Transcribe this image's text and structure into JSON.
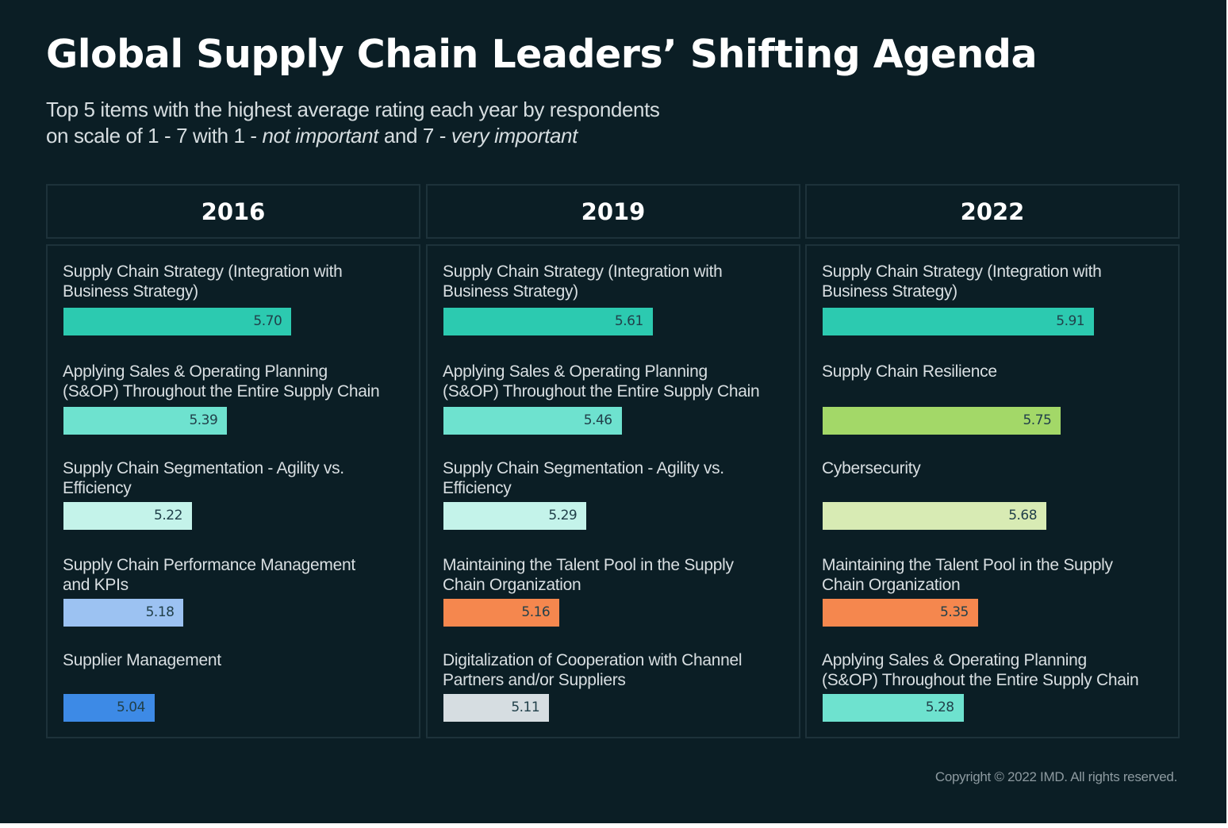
{
  "title": "Global Supply Chain Leaders’ Shifting Agenda",
  "subtitle": {
    "line1": "Top 5 items with the highest average rating each year by respondents",
    "line2_start": "on scale of 1 - 7 with 1 - ",
    "low_label": "not important",
    "line2_mid": " and 7 - ",
    "high_label": "very important"
  },
  "copyright": "Copyright © 2022 IMD. All rights reserved.",
  "colors": {
    "background": "#0b1e25",
    "teal": "#2ccab0",
    "teal_light": "#6ee2cf",
    "teal_pale": "#c4f3ea",
    "blue_light": "#9cc2f2",
    "blue": "#3d8ae6",
    "lime": "#a3d868",
    "lime_pale": "#d8ebb4",
    "orange": "#f5874e",
    "gray": "#d6dde1"
  },
  "chart_data": {
    "type": "bar",
    "orientation": "horizontal",
    "xlim": [
      4.6,
      6.1
    ],
    "panels": [
      {
        "year": "2016",
        "items": [
          {
            "label_lines": [
              "Supply Chain Strategy (Integration with",
              "Business Strategy)"
            ],
            "value": 5.7,
            "display": "5.70",
            "color": "#2ccab0"
          },
          {
            "label_lines": [
              "Applying Sales & Operating Planning",
              "(S&OP) Throughout the Entire Supply Chain"
            ],
            "value": 5.39,
            "display": "5.39",
            "color": "#6ee2cf"
          },
          {
            "label_lines": [
              "Supply Chain Segmentation - Agility vs.",
              "Efficiency"
            ],
            "value": 5.22,
            "display": "5.22",
            "color": "#c4f3ea"
          },
          {
            "label_lines": [
              "Supply Chain Performance Management",
              "and KPIs"
            ],
            "value": 5.18,
            "display": "5.18",
            "color": "#9cc2f2"
          },
          {
            "label_lines": [
              "Supplier Management"
            ],
            "value": 5.04,
            "display": "5.04",
            "color": "#3d8ae6"
          }
        ]
      },
      {
        "year": "2019",
        "items": [
          {
            "label_lines": [
              "Supply Chain Strategy (Integration with",
              "Business Strategy)"
            ],
            "value": 5.61,
            "display": "5.61",
            "color": "#2ccab0"
          },
          {
            "label_lines": [
              "Applying Sales & Operating Planning",
              "(S&OP) Throughout the Entire Supply Chain"
            ],
            "value": 5.46,
            "display": "5.46",
            "color": "#6ee2cf"
          },
          {
            "label_lines": [
              "Supply Chain Segmentation - Agility vs.",
              "Efficiency"
            ],
            "value": 5.29,
            "display": "5.29",
            "color": "#c4f3ea"
          },
          {
            "label_lines": [
              "Maintaining the Talent Pool in the Supply",
              "Chain Organization"
            ],
            "value": 5.16,
            "display": "5.16",
            "color": "#f5874e"
          },
          {
            "label_lines": [
              "Digitalization of Cooperation with Channel",
              "Partners and/or Suppliers"
            ],
            "value": 5.11,
            "display": "5.11",
            "color": "#d6dde1"
          }
        ]
      },
      {
        "year": "2022",
        "items": [
          {
            "label_lines": [
              "Supply Chain Strategy (Integration with",
              "Business Strategy)"
            ],
            "value": 5.91,
            "display": "5.91",
            "color": "#2ccab0"
          },
          {
            "label_lines": [
              "Supply Chain Resilience"
            ],
            "value": 5.75,
            "display": "5.75",
            "color": "#a3d868"
          },
          {
            "label_lines": [
              "Cybersecurity"
            ],
            "value": 5.68,
            "display": "5.68",
            "color": "#d8ebb4"
          },
          {
            "label_lines": [
              "Maintaining the Talent Pool in the Supply",
              "Chain Organization"
            ],
            "value": 5.35,
            "display": "5.35",
            "color": "#f5874e"
          },
          {
            "label_lines": [
              "Applying Sales & Operating Planning",
              "(S&OP) Throughout the Entire Supply Chain"
            ],
            "value": 5.28,
            "display": "5.28",
            "color": "#6ee2cf"
          }
        ]
      }
    ]
  }
}
